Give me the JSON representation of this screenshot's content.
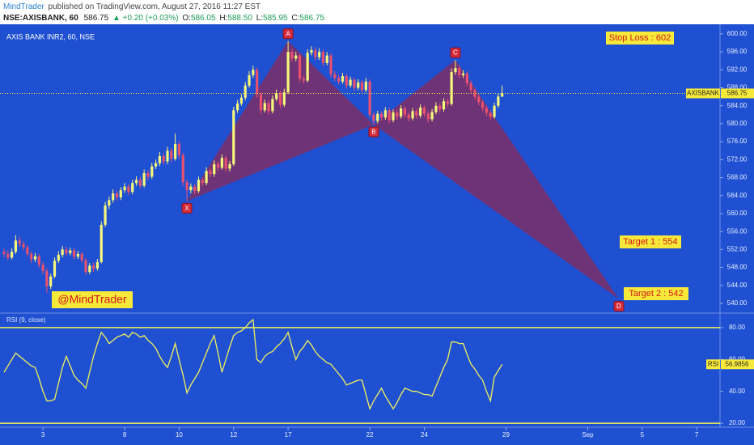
{
  "header": {
    "publisher": "MindTrader",
    "published": "published on TradingView.com, August 27, 2016 11:27 EST",
    "symbol": "NSE:AXISBANK, 60",
    "price": "586.75",
    "change": "▲ +0.20 (+0.03%)",
    "ohlc": [
      {
        "label": "O:",
        "value": "586.05"
      },
      {
        "label": "H:",
        "value": "588.50"
      },
      {
        "label": "L:",
        "value": "585.95"
      },
      {
        "label": "C:",
        "value": "586.75"
      }
    ]
  },
  "chart_data": [
    {
      "type": "candlestick",
      "title": "AXIS BANK INR2, 60, NSE",
      "series_label": "AXISBANK",
      "up_color": "#f7f77a",
      "down_color": "#e8506e",
      "pattern_color": "#7d2e66",
      "xlim": [
        0,
        184
      ],
      "xticks": [
        {
          "value": 10,
          "label": "3"
        },
        {
          "value": 31,
          "label": "8"
        },
        {
          "value": 45,
          "label": "10"
        },
        {
          "value": 59,
          "label": "12"
        },
        {
          "value": 73,
          "label": "17"
        },
        {
          "value": 94,
          "label": "22"
        },
        {
          "value": 108,
          "label": "24"
        },
        {
          "value": 129,
          "label": "29"
        },
        {
          "value": 150,
          "label": "Sep"
        },
        {
          "value": 164,
          "label": "5"
        },
        {
          "value": 178,
          "label": "7"
        }
      ],
      "ylim": [
        538.2,
        601.6
      ],
      "yticks": [
        {
          "value": 540,
          "label": "540.00"
        },
        {
          "value": 544,
          "label": "544.00"
        },
        {
          "value": 548,
          "label": "548.00"
        },
        {
          "value": 552,
          "label": "552.00"
        },
        {
          "value": 556,
          "label": "556.00"
        },
        {
          "value": 560,
          "label": "560.00"
        },
        {
          "value": 564,
          "label": "564.00"
        },
        {
          "value": 568,
          "label": "568.00"
        },
        {
          "value": 572,
          "label": "572.00"
        },
        {
          "value": 576,
          "label": "576.00"
        },
        {
          "value": 580,
          "label": "580.00"
        },
        {
          "value": 584,
          "label": "584.00"
        },
        {
          "value": 588,
          "label": "588.00"
        },
        {
          "value": 592,
          "label": "592.00"
        },
        {
          "value": 596,
          "label": "596.00"
        },
        {
          "value": 600,
          "label": "600.00"
        }
      ],
      "open": [
        551.5,
        551.0,
        550.2,
        551.5,
        554.0,
        553.2,
        552.5,
        551.0,
        549.8,
        550.5,
        548.6,
        547.2,
        543.8,
        546.0,
        549.5,
        550.8,
        552.0,
        551.2,
        551.8,
        550.4,
        551.0,
        549.6,
        547.0,
        548.4,
        547.8,
        549.2,
        557.5,
        561.8,
        563.0,
        564.5,
        563.6,
        565.2,
        566.0,
        564.8,
        566.8,
        567.5,
        566.2,
        569.0,
        568.2,
        570.5,
        571.2,
        572.8,
        571.6,
        574.0,
        572.2,
        575.5,
        573.0,
        567.0,
        565.2,
        566.0,
        565.0,
        567.5,
        566.8,
        569.5,
        568.8,
        571.0,
        570.2,
        572.4,
        570.0,
        571.0,
        583.0,
        584.5,
        585.8,
        588.5,
        590.8,
        592.0,
        586.5,
        583.0,
        584.6,
        582.8,
        585.5,
        586.8,
        584.2,
        587.0,
        596.0,
        594.5,
        595.2,
        590.0,
        589.6,
        595.8,
        596.4,
        594.8,
        596.0,
        593.5,
        595.2,
        591.0,
        590.2,
        589.4,
        590.6,
        588.5,
        589.8,
        588.0,
        589.2,
        587.5,
        589.4,
        582.0,
        580.6,
        582.2,
        581.4,
        583.0,
        580.8,
        582.5,
        581.6,
        583.4,
        582.0,
        581.2,
        582.8,
        581.8,
        583.6,
        582.2,
        581.0,
        582.6,
        584.0,
        583.2,
        585.0,
        584.4,
        591.5,
        592.4,
        590.8,
        591.2,
        589.0,
        587.5,
        586.0,
        584.8,
        583.5,
        582.4,
        581.5,
        584.0,
        586.05
      ],
      "high": [
        552.2,
        551.8,
        552.3,
        555.2,
        554.8,
        553.9,
        553.0,
        551.6,
        551.2,
        551.0,
        549.2,
        547.8,
        546.6,
        550.2,
        551.6,
        552.8,
        552.6,
        552.4,
        552.3,
        551.7,
        551.5,
        550.1,
        549.0,
        549.1,
        549.9,
        558.3,
        562.6,
        563.8,
        565.4,
        565.1,
        565.9,
        566.8,
        566.6,
        567.5,
        568.3,
        568.1,
        569.8,
        569.7,
        571.3,
        572.0,
        573.7,
        573.4,
        574.9,
        574.6,
        577.8,
        576.1,
        573.5,
        567.6,
        566.7,
        566.6,
        568.2,
        568.0,
        570.3,
        570.1,
        571.8,
        571.6,
        573.2,
        572.9,
        571.7,
        583.8,
        585.3,
        586.6,
        589.3,
        591.7,
        592.9,
        592.5,
        587.0,
        585.4,
        585.2,
        586.3,
        587.6,
        587.3,
        587.8,
        598.4,
        596.6,
        596.0,
        595.7,
        590.7,
        596.6,
        597.2,
        597.0,
        596.8,
        596.5,
        596.0,
        595.7,
        591.7,
        590.9,
        591.3,
        591.1,
        590.5,
        590.3,
        589.9,
        589.7,
        590.2,
        589.9,
        582.6,
        582.9,
        582.8,
        583.7,
        583.5,
        583.2,
        583.1,
        584.1,
        583.9,
        582.6,
        583.5,
        583.3,
        584.3,
        584.1,
        582.8,
        583.3,
        584.8,
        584.6,
        585.7,
        585.6,
        592.3,
        594.2,
        593.0,
        591.9,
        591.7,
        589.6,
        588.1,
        586.6,
        585.4,
        584.1,
        583.0,
        584.7,
        586.8,
        588.5
      ],
      "low": [
        550.3,
        549.6,
        549.8,
        551.0,
        552.6,
        551.8,
        550.4,
        549.0,
        549.2,
        548.0,
        546.5,
        542.4,
        543.2,
        545.6,
        549.0,
        550.2,
        550.6,
        550.7,
        549.8,
        549.9,
        549.0,
        546.3,
        546.5,
        547.0,
        547.3,
        548.9,
        557.0,
        561.0,
        562.4,
        562.9,
        563.0,
        564.6,
        564.1,
        564.3,
        566.2,
        565.6,
        565.8,
        567.5,
        567.7,
        569.9,
        570.6,
        570.9,
        571.0,
        571.5,
        571.8,
        572.3,
        566.2,
        562.8,
        564.5,
        564.3,
        564.6,
        566.1,
        566.3,
        568.1,
        568.2,
        569.5,
        569.8,
        569.3,
        569.4,
        570.6,
        582.4,
        584.0,
        585.2,
        588.0,
        590.2,
        585.8,
        582.2,
        582.5,
        582.0,
        582.3,
        585.0,
        583.5,
        583.7,
        586.6,
        593.8,
        593.9,
        589.3,
        588.9,
        589.2,
        595.2,
        594.1,
        594.2,
        592.8,
        593.0,
        590.3,
        589.5,
        588.7,
        588.9,
        587.8,
        588.0,
        587.3,
        587.5,
        586.8,
        587.0,
        581.3,
        579.8,
        580.1,
        580.7,
        580.9,
        580.1,
        580.3,
        580.9,
        581.1,
        581.3,
        580.5,
        580.7,
        581.1,
        581.3,
        581.5,
        580.2,
        580.5,
        582.1,
        582.5,
        582.7,
        583.7,
        584.0,
        590.9,
        590.1,
        590.2,
        588.3,
        586.8,
        585.3,
        584.1,
        582.8,
        581.7,
        580.8,
        581.1,
        583.5,
        585.95
      ],
      "close": [
        551.0,
        550.2,
        551.5,
        554.0,
        553.2,
        552.5,
        551.0,
        549.8,
        550.5,
        548.6,
        547.2,
        543.8,
        546.0,
        549.5,
        550.8,
        552.0,
        551.2,
        551.8,
        550.4,
        551.0,
        549.6,
        547.0,
        548.4,
        547.8,
        549.2,
        557.5,
        561.8,
        563.0,
        564.5,
        563.6,
        565.2,
        566.0,
        564.8,
        566.8,
        567.5,
        566.2,
        569.0,
        568.2,
        570.5,
        571.2,
        572.8,
        571.6,
        574.0,
        572.2,
        575.5,
        573.0,
        567.0,
        565.2,
        566.0,
        565.0,
        567.5,
        566.8,
        569.5,
        568.8,
        571.0,
        570.2,
        572.4,
        570.0,
        571.0,
        583.0,
        584.5,
        585.8,
        588.5,
        590.8,
        592.0,
        586.5,
        583.0,
        584.6,
        582.8,
        585.5,
        586.8,
        584.2,
        587.0,
        596.0,
        594.5,
        595.2,
        590.0,
        589.6,
        595.8,
        596.4,
        594.8,
        596.0,
        593.5,
        595.2,
        591.0,
        590.2,
        589.4,
        590.6,
        588.5,
        589.8,
        588.0,
        589.2,
        587.5,
        589.4,
        582.0,
        580.6,
        582.2,
        581.4,
        583.0,
        580.8,
        582.5,
        581.6,
        583.4,
        582.0,
        581.2,
        582.8,
        581.8,
        583.6,
        582.2,
        581.0,
        582.6,
        584.0,
        583.2,
        585.0,
        584.4,
        591.5,
        592.4,
        590.8,
        591.2,
        589.0,
        587.5,
        586.0,
        584.8,
        583.5,
        582.4,
        581.5,
        584.0,
        586.05,
        586.75
      ],
      "pattern": [
        {
          "label": "X",
          "x": 47,
          "y": 562.8
        },
        {
          "label": "A",
          "x": 73,
          "y": 598.4
        },
        {
          "label": "B",
          "x": 95,
          "y": 579.8
        },
        {
          "label": "C",
          "x": 116,
          "y": 594.2
        },
        {
          "label": "D",
          "x": 158,
          "y": 541
        }
      ],
      "annotations": [
        "Stop Loss : 602",
        "Target 1 : 554",
        "Target 2 : 542"
      ],
      "watermark": "@MindTrader"
    },
    {
      "type": "line",
      "name": "RSI",
      "title": "RSI (9, close)",
      "color": "#f2f25a",
      "ylim": [
        17.5,
        88.6
      ],
      "yticks": [
        {
          "value": 20,
          "label": "20.00"
        },
        {
          "value": 40,
          "label": "40.00"
        },
        {
          "value": 60,
          "label": "60.00"
        },
        {
          "value": 80,
          "label": "80.00"
        }
      ],
      "bands": [
        80,
        20
      ],
      "values": [
        52,
        56,
        60,
        64,
        62,
        60,
        58,
        56,
        55,
        48,
        40,
        34,
        34,
        35,
        45,
        55,
        62,
        56,
        50,
        47,
        45,
        42,
        52,
        62,
        70,
        77,
        74,
        70,
        72,
        74,
        75,
        76,
        74,
        77,
        76,
        74,
        75,
        72,
        70,
        67,
        62,
        58,
        55,
        62,
        70,
        60,
        50,
        39,
        44,
        48,
        52,
        58,
        64,
        70,
        75,
        64,
        52,
        60,
        68,
        75,
        77,
        78,
        80,
        83,
        85,
        60,
        58,
        62,
        64,
        65,
        68,
        70,
        73,
        77,
        68,
        60,
        65,
        68,
        72,
        69,
        65,
        62,
        60,
        58,
        57,
        54,
        51,
        48,
        44,
        45,
        46,
        47,
        47,
        38,
        29,
        34,
        38,
        42,
        37,
        33,
        29,
        33,
        38,
        42,
        41,
        40,
        40,
        39,
        38,
        38,
        37,
        43,
        49,
        55,
        60,
        71,
        71,
        70,
        70,
        63,
        57,
        54,
        50,
        47,
        40,
        34,
        49,
        53,
        56.9856
      ]
    }
  ]
}
